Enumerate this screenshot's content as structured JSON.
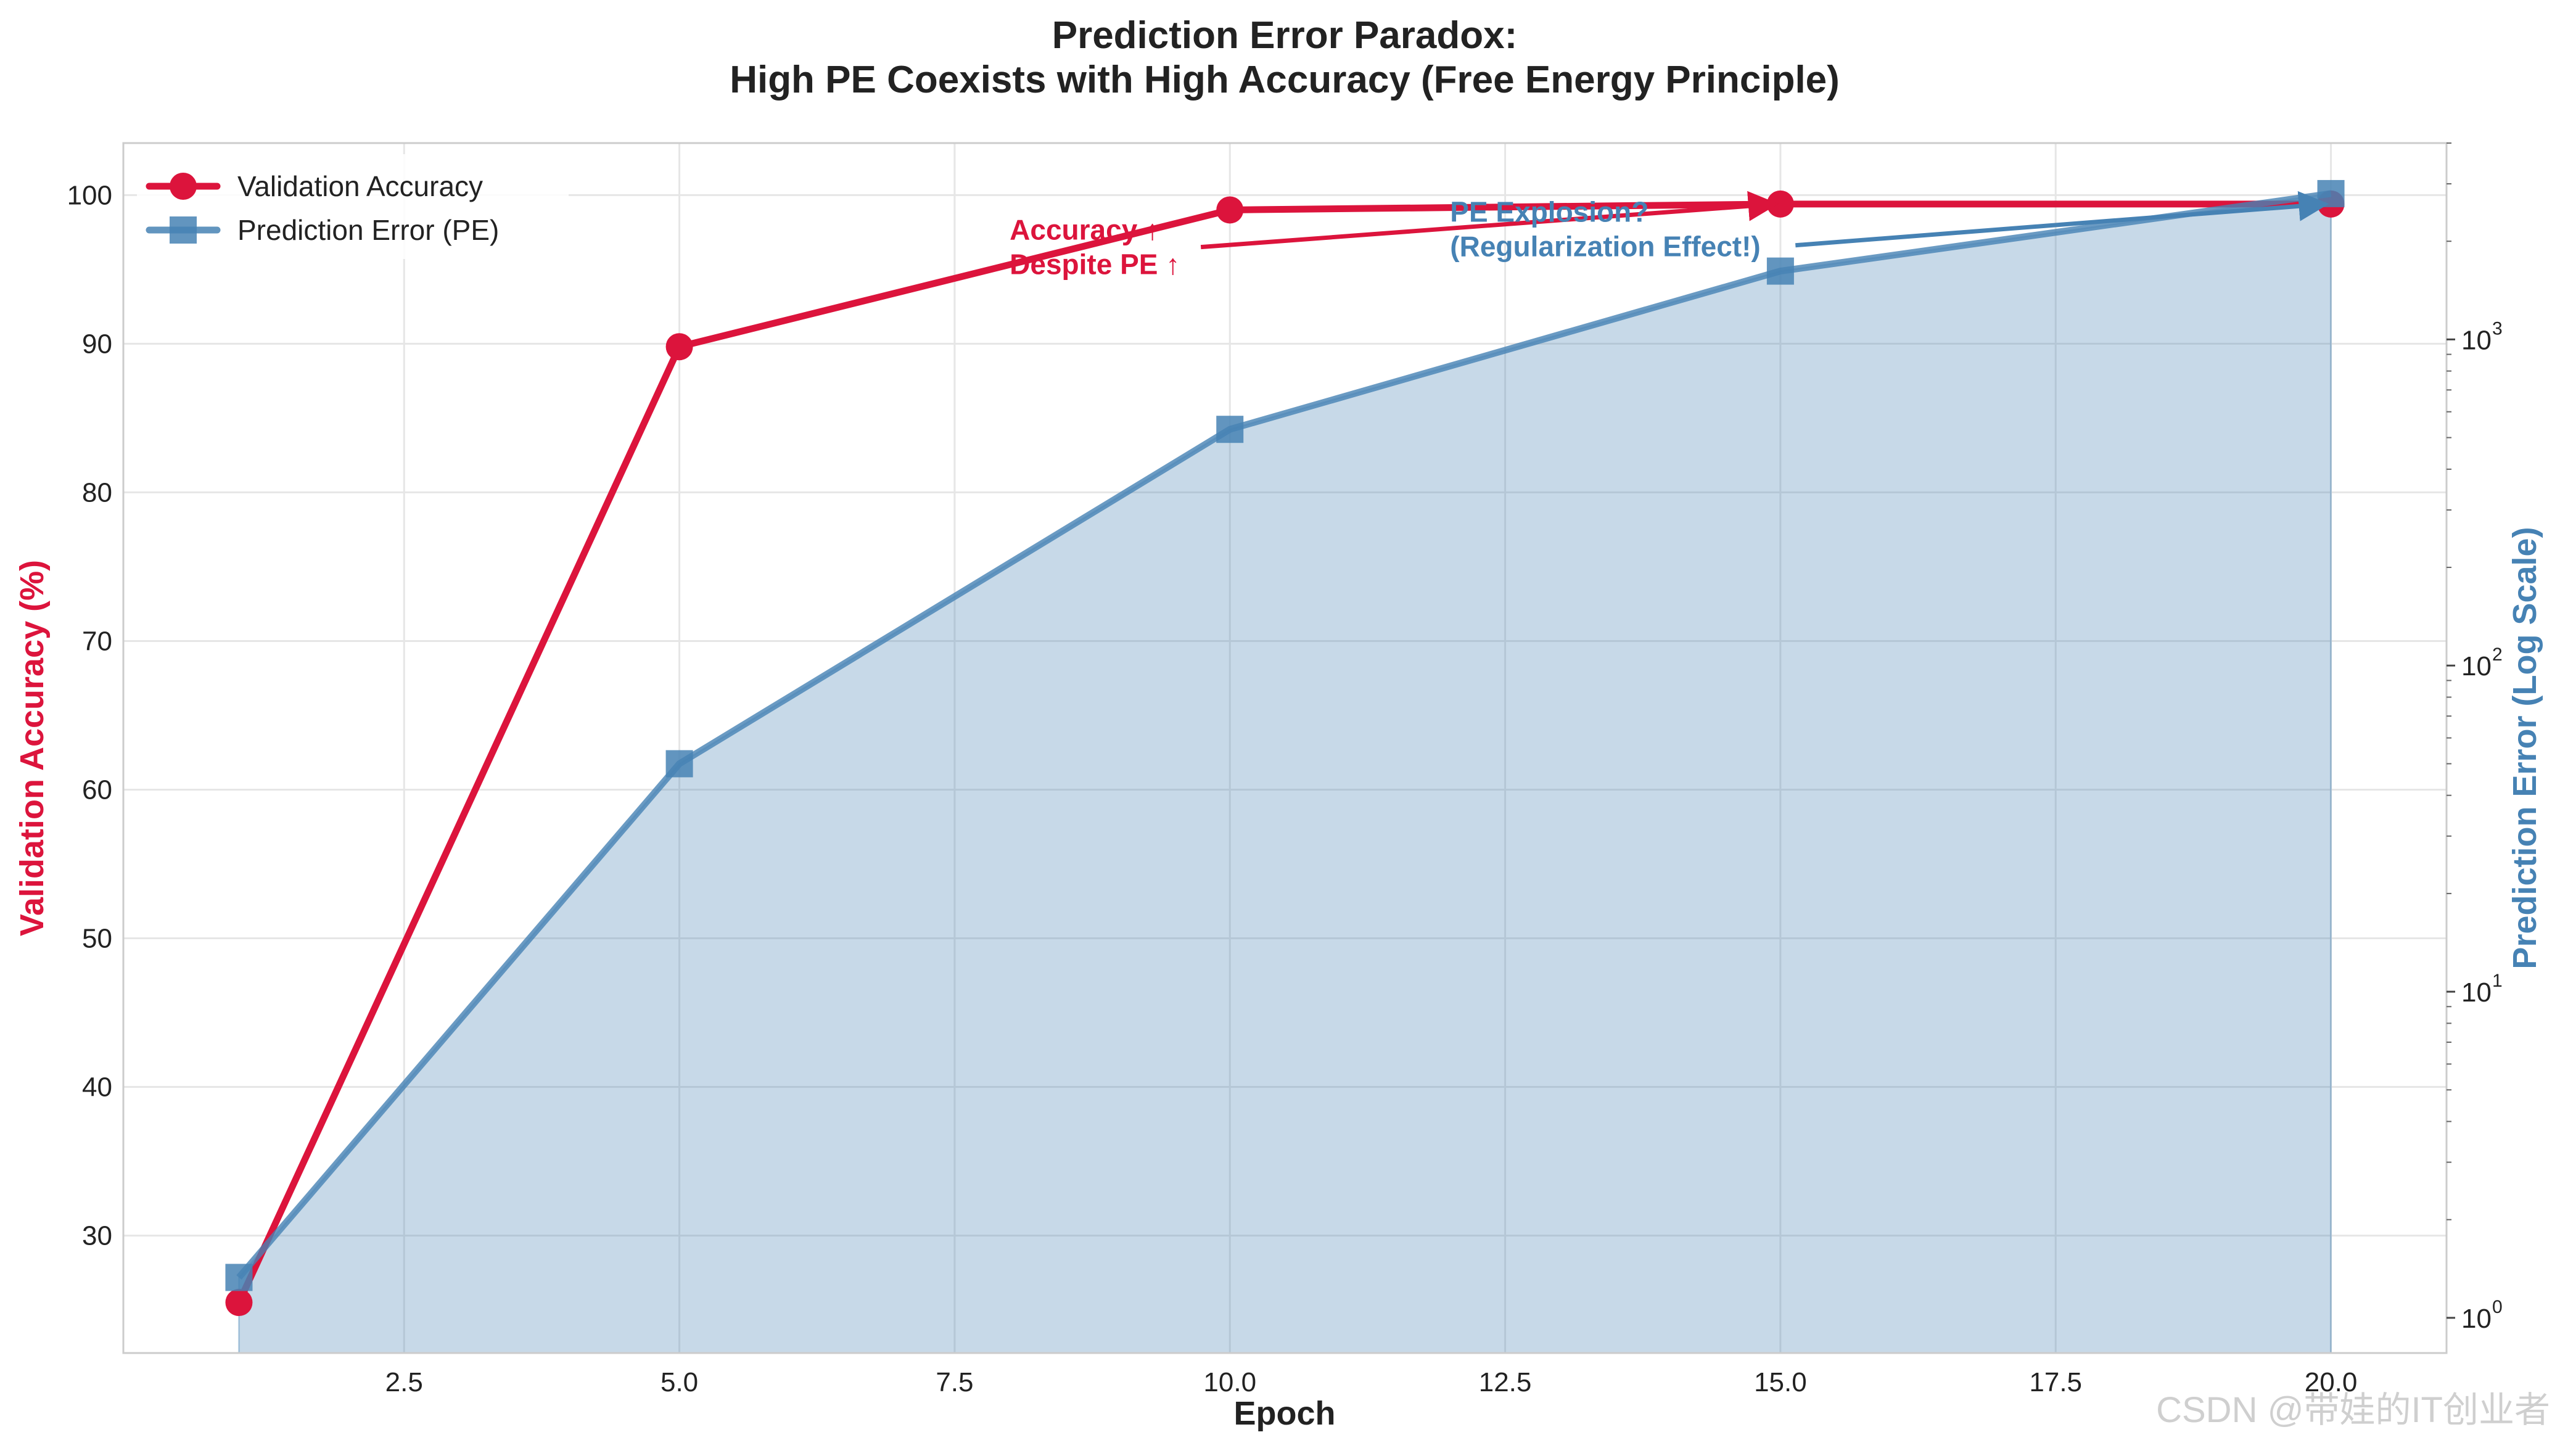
{
  "chart_data": {
    "type": "line",
    "title_lines": [
      "Prediction Error Paradox:",
      "High PE Coexists with High Accuracy (Free Energy Principle)"
    ],
    "xlabel": "Epoch",
    "ylabel_left": "Validation Accuracy (%)",
    "ylabel_right": "Prediction Error (Log Scale)",
    "x": [
      1,
      5,
      10,
      15,
      20
    ],
    "xlim": [
      -0.05,
      21.05
    ],
    "xticks": [
      2.5,
      5.0,
      7.5,
      10.0,
      12.5,
      15.0,
      17.5,
      20.0
    ],
    "xtick_labels": [
      "2.5",
      "5.0",
      "7.5",
      "10.0",
      "12.5",
      "15.0",
      "17.5",
      "20.0"
    ],
    "left_axis": {
      "scale": "linear",
      "lim": [
        22.1,
        103.5
      ],
      "ticks": [
        30,
        40,
        50,
        60,
        70,
        80,
        90,
        100
      ],
      "tick_labels": [
        "30",
        "40",
        "50",
        "60",
        "70",
        "80",
        "90",
        "100"
      ]
    },
    "right_axis": {
      "scale": "log",
      "lim": [
        0.78,
        4000
      ],
      "ticks": [
        1,
        10,
        100,
        1000
      ],
      "tick_labels": [
        {
          "base": "10",
          "exp": "0"
        },
        {
          "base": "10",
          "exp": "1"
        },
        {
          "base": "10",
          "exp": "2"
        },
        {
          "base": "10",
          "exp": "3"
        }
      ]
    },
    "grid": true,
    "legend_position": "top-left",
    "series": [
      {
        "name": "Validation Accuracy",
        "axis": "left",
        "marker": "circle",
        "color": "#dc143c",
        "values": [
          25.5,
          89.8,
          99.0,
          99.4,
          99.4
        ]
      },
      {
        "name": "Prediction Error (PE)",
        "axis": "right",
        "marker": "square",
        "color": "#4682b4",
        "fill": true,
        "values": [
          1.33,
          50,
          530,
          1620,
          2800
        ]
      }
    ],
    "annotations": [
      {
        "id": "accuracy",
        "lines": [
          "Accuracy ↑",
          "Despite PE ↑"
        ],
        "color": "#dc143c",
        "text_at": {
          "x": 8.0,
          "y_left": 97.0
        },
        "arrow_to": {
          "x": 15,
          "y_left": 99.4
        }
      },
      {
        "id": "pe",
        "lines": [
          "PE Explosion?",
          "(Regularization Effect!)"
        ],
        "color": "#4682b4",
        "text_at": {
          "x": 12.0,
          "y_left": 98.2
        },
        "arrow_to": {
          "x": 20,
          "y_left": 99.4
        }
      }
    ]
  },
  "watermark": "CSDN @带娃的IT创业者"
}
